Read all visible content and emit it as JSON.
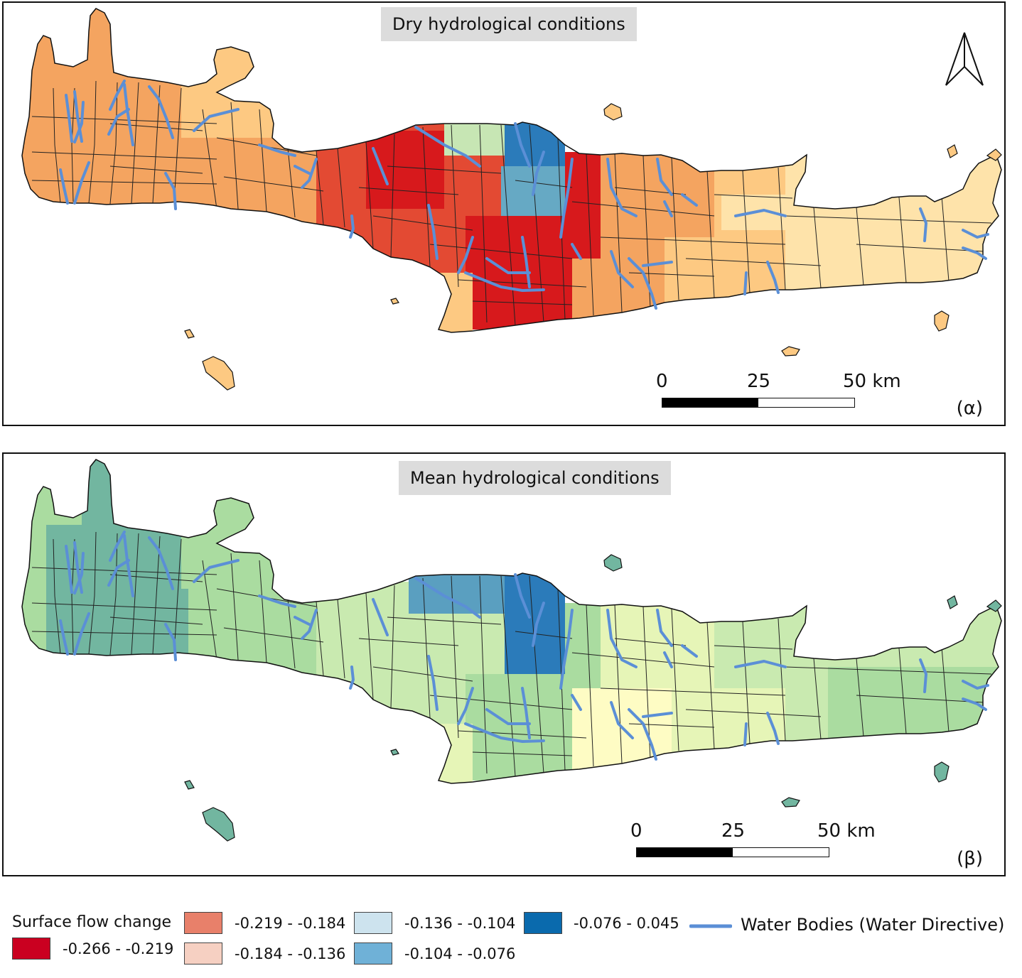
{
  "panels": [
    {
      "title": "Dry hydrological conditions",
      "letter": "(α)",
      "scale": {
        "labels": [
          "0",
          "25",
          "50 km"
        ]
      },
      "north_arrow": "north-arrow-icon"
    },
    {
      "title": "Mean hydrological conditions",
      "letter": "(β)",
      "scale": {
        "labels": [
          "0",
          "25",
          "50 km"
        ]
      }
    }
  ],
  "legend": {
    "title": "Surface flow change",
    "classes": [
      {
        "label": "-0.266 - -0.219",
        "color": "#ca0020"
      },
      {
        "label": "-0.219 - -0.184",
        "color": "#e8806a"
      },
      {
        "label": "-0.184 - -0.136",
        "color": "#f6d0c2"
      },
      {
        "label": "-0.136 - -0.104",
        "color": "#cde3ee"
      },
      {
        "label": "-0.104 - -0.076",
        "color": "#6fb1d7"
      },
      {
        "label": "-0.076 - 0.045",
        "color": "#0a6aad"
      }
    ],
    "line_item": {
      "label": "Water Bodies (Water Directive)",
      "color": "#5b8fd6"
    }
  },
  "colors": {
    "dry_red": "#d7191c",
    "dry_darkorange": "#e34a33",
    "dry_orange": "#f4a460",
    "dry_lightorange": "#fdc982",
    "dry_pale": "#fee3aa",
    "dry_lightgreen": "#c7e6b4",
    "dry_blue": "#2b7bba",
    "dry_teal": "#66a9c4",
    "mean_teal": "#72b6a0",
    "mean_green": "#aadca0",
    "mean_lightgreen": "#c9eab0",
    "mean_pale": "#e6f5b7",
    "mean_yellow": "#fefcc4",
    "mean_blue": "#2b7bba",
    "mean_blueteal": "#5a9fc0",
    "river": "#5b8fd6"
  }
}
